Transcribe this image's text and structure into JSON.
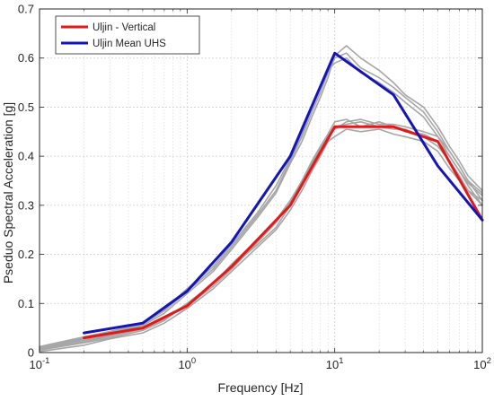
{
  "chart_data": {
    "type": "line",
    "xscale": "log",
    "xlim": [
      0.1,
      100
    ],
    "ylim": [
      0,
      0.7
    ],
    "grid": true,
    "xlabel": "Frequency [Hz]",
    "ylabel": "Pseduo Spectral Acceleration [g]",
    "xticks": [
      0.1,
      1,
      10,
      100
    ],
    "xtick_labels": [
      {
        "base": "10",
        "exp": "-1"
      },
      {
        "base": "10",
        "exp": "0"
      },
      {
        "base": "10",
        "exp": "1"
      },
      {
        "base": "10",
        "exp": "2"
      }
    ],
    "yticks": [
      0,
      0.1,
      0.2,
      0.3,
      0.4,
      0.5,
      0.6,
      0.7
    ],
    "ytick_labels": [
      "0",
      "0.1",
      "0.2",
      "0.3",
      "0.4",
      "0.5",
      "0.6",
      "0.7"
    ],
    "legend": {
      "placement": "top-left",
      "entries": [
        {
          "label": "Uljin - Vertical",
          "color": "#e01a1a"
        },
        {
          "label": "Uljin Mean UHS",
          "color": "#1515b5"
        }
      ]
    },
    "series": [
      {
        "name": "Uljin - Vertical",
        "color": "#e01a1a",
        "x": [
          0.2,
          0.5,
          1,
          2,
          5,
          10,
          25,
          50,
          100
        ],
        "y": [
          0.03,
          0.05,
          0.095,
          0.175,
          0.3,
          0.46,
          0.46,
          0.43,
          0.27
        ]
      },
      {
        "name": "Uljin Mean UHS",
        "color": "#1515b5",
        "x": [
          0.2,
          0.5,
          1,
          2,
          5,
          10,
          25,
          50,
          100
        ],
        "y": [
          0.04,
          0.06,
          0.125,
          0.225,
          0.4,
          0.61,
          0.525,
          0.38,
          0.27
        ]
      }
    ],
    "background_series": {
      "color": "#a6a6a6",
      "curves": [
        {
          "x": [
            0.1,
            0.2,
            0.3,
            0.5,
            0.7,
            1,
            1.5,
            2,
            3,
            4,
            5,
            6,
            7,
            8,
            9,
            10,
            12,
            15,
            20,
            25,
            30,
            40,
            50,
            60,
            70,
            80,
            100
          ],
          "y": [
            0.005,
            0.02,
            0.03,
            0.045,
            0.065,
            0.1,
            0.14,
            0.175,
            0.22,
            0.255,
            0.3,
            0.34,
            0.38,
            0.41,
            0.44,
            0.46,
            0.465,
            0.47,
            0.46,
            0.455,
            0.455,
            0.44,
            0.42,
            0.39,
            0.36,
            0.33,
            0.3
          ]
        },
        {
          "x": [
            0.1,
            0.2,
            0.3,
            0.5,
            0.7,
            1,
            1.5,
            2,
            3,
            4,
            5,
            6,
            7,
            8,
            9,
            10,
            12,
            15,
            20,
            25,
            30,
            40,
            50,
            60,
            70,
            80,
            100
          ],
          "y": [
            0.008,
            0.025,
            0.035,
            0.05,
            0.07,
            0.095,
            0.135,
            0.17,
            0.225,
            0.265,
            0.305,
            0.35,
            0.39,
            0.42,
            0.445,
            0.47,
            0.475,
            0.46,
            0.47,
            0.46,
            0.45,
            0.445,
            0.43,
            0.4,
            0.37,
            0.345,
            0.32
          ]
        },
        {
          "x": [
            0.1,
            0.2,
            0.3,
            0.5,
            0.7,
            1,
            1.5,
            2,
            3,
            4,
            5,
            6,
            7,
            8,
            9,
            10,
            12,
            15,
            20,
            25,
            30,
            40,
            50,
            60,
            70,
            80,
            100
          ],
          "y": [
            0.002,
            0.015,
            0.028,
            0.04,
            0.06,
            0.09,
            0.13,
            0.165,
            0.215,
            0.25,
            0.29,
            0.33,
            0.37,
            0.4,
            0.43,
            0.44,
            0.455,
            0.45,
            0.455,
            0.445,
            0.44,
            0.43,
            0.41,
            0.375,
            0.35,
            0.33,
            0.31
          ]
        },
        {
          "x": [
            0.1,
            0.2,
            0.3,
            0.5,
            0.7,
            1,
            1.5,
            2,
            3,
            4,
            5,
            6,
            7,
            8,
            9,
            10,
            12,
            15,
            20,
            25,
            30,
            40,
            50,
            60,
            70,
            80,
            100
          ],
          "y": [
            0.006,
            0.022,
            0.033,
            0.048,
            0.068,
            0.1,
            0.14,
            0.18,
            0.23,
            0.27,
            0.31,
            0.35,
            0.385,
            0.415,
            0.44,
            0.455,
            0.47,
            0.475,
            0.465,
            0.465,
            0.46,
            0.45,
            0.44,
            0.41,
            0.38,
            0.35,
            0.325
          ]
        },
        {
          "x": [
            0.1,
            0.2,
            0.3,
            0.5,
            0.7,
            1,
            1.5,
            2,
            3,
            4,
            5,
            6,
            7,
            8,
            9,
            10,
            12,
            15,
            20,
            25,
            30,
            40,
            50,
            60,
            70,
            80,
            100
          ],
          "y": [
            0.01,
            0.03,
            0.04,
            0.058,
            0.085,
            0.125,
            0.17,
            0.215,
            0.28,
            0.33,
            0.39,
            0.44,
            0.49,
            0.53,
            0.57,
            0.6,
            0.61,
            0.58,
            0.56,
            0.54,
            0.52,
            0.49,
            0.45,
            0.41,
            0.38,
            0.35,
            0.31
          ]
        },
        {
          "x": [
            0.1,
            0.2,
            0.3,
            0.5,
            0.7,
            1,
            1.5,
            2,
            3,
            4,
            5,
            6,
            7,
            8,
            9,
            10,
            12,
            15,
            20,
            25,
            30,
            40,
            50,
            60,
            70,
            80,
            100
          ],
          "y": [
            0.007,
            0.028,
            0.038,
            0.055,
            0.08,
            0.12,
            0.165,
            0.21,
            0.275,
            0.325,
            0.385,
            0.43,
            0.48,
            0.52,
            0.56,
            0.605,
            0.625,
            0.6,
            0.575,
            0.55,
            0.525,
            0.5,
            0.46,
            0.42,
            0.39,
            0.36,
            0.33
          ]
        },
        {
          "x": [
            0.1,
            0.2,
            0.3,
            0.5,
            0.7,
            1,
            1.5,
            2,
            3,
            4,
            5,
            6,
            7,
            8,
            9,
            10,
            12,
            15,
            20,
            25,
            30,
            40,
            50,
            60,
            70,
            80,
            100
          ],
          "y": [
            0.012,
            0.032,
            0.043,
            0.06,
            0.088,
            0.13,
            0.175,
            0.22,
            0.285,
            0.34,
            0.395,
            0.445,
            0.5,
            0.54,
            0.575,
            0.59,
            0.6,
            0.57,
            0.55,
            0.53,
            0.51,
            0.48,
            0.44,
            0.4,
            0.37,
            0.34,
            0.3
          ]
        }
      ]
    }
  }
}
